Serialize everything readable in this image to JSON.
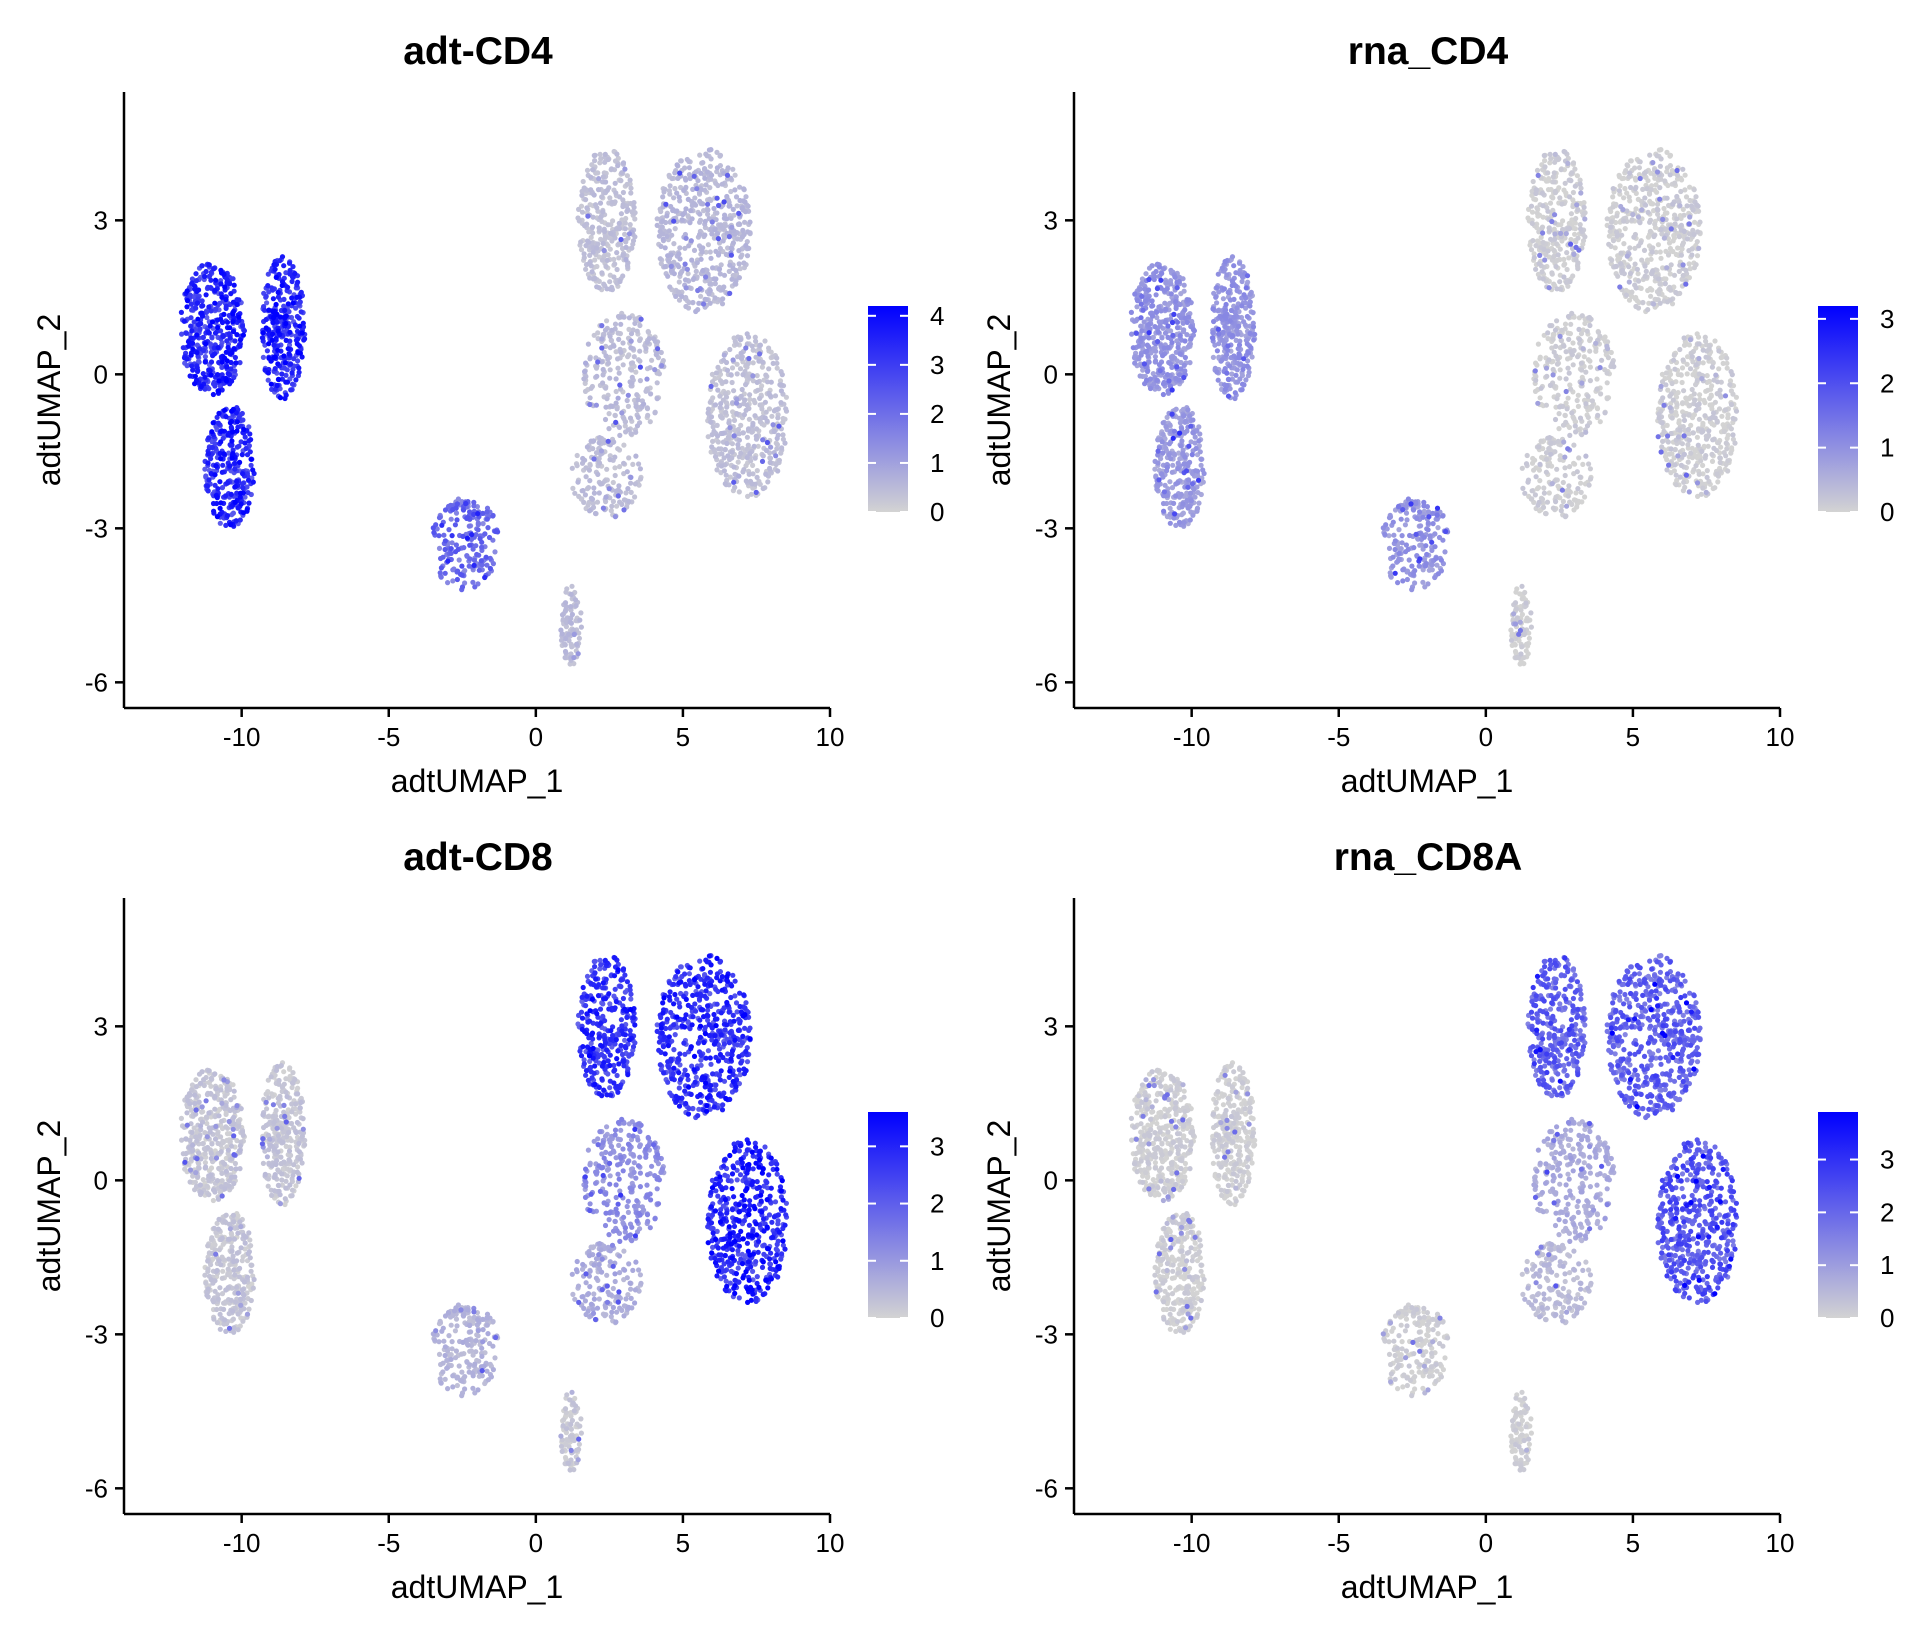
{
  "chart_data": [
    {
      "type": "scatter",
      "title": "adt-CD4",
      "xlabel": "adtUMAP_1",
      "ylabel": "adtUMAP_2",
      "xlim": [
        -14,
        10
      ],
      "ylim": [
        -6.5,
        5.5
      ],
      "xticks": [
        "-10",
        "-5",
        "0",
        "5",
        "10"
      ],
      "yticks": [
        "-6",
        "-3",
        "0",
        "3"
      ],
      "colorbar": {
        "min": 0,
        "max": 4.2,
        "ticks": [
          "0",
          "1",
          "2",
          "3",
          "4"
        ],
        "low_color": "#d3d3d3",
        "high_color": "#0000ff"
      },
      "clusters": [
        {
          "name": "A",
          "cx": -11,
          "cy": 0.9,
          "rx": 1.1,
          "ry": 1.3,
          "n": 420,
          "level": 3.2
        },
        {
          "name": "B",
          "cx": -8.6,
          "cy": 0.9,
          "rx": 0.75,
          "ry": 1.4,
          "n": 300,
          "level": 3.3
        },
        {
          "name": "C",
          "cx": -10.4,
          "cy": -1.8,
          "rx": 0.85,
          "ry": 1.2,
          "n": 300,
          "level": 3.2
        },
        {
          "name": "D",
          "cx": -2.4,
          "cy": -3.3,
          "rx": 1.2,
          "ry": 0.9,
          "n": 200,
          "level": 2.0
        },
        {
          "name": "E",
          "cx": 2.4,
          "cy": 3.0,
          "rx": 1.0,
          "ry": 1.4,
          "n": 320,
          "level": 0.35
        },
        {
          "name": "F",
          "cx": 5.7,
          "cy": 2.8,
          "rx": 1.6,
          "ry": 1.6,
          "n": 520,
          "level": 0.5
        },
        {
          "name": "G",
          "cx": 7.2,
          "cy": -0.8,
          "rx": 1.4,
          "ry": 1.6,
          "n": 460,
          "level": 0.35
        },
        {
          "name": "H",
          "cx": 3.0,
          "cy": 0.0,
          "rx": 1.4,
          "ry": 1.2,
          "n": 260,
          "level": 0.4
        },
        {
          "name": "I",
          "cx": 2.4,
          "cy": -2.0,
          "rx": 1.2,
          "ry": 0.8,
          "n": 160,
          "level": 0.4
        },
        {
          "name": "J",
          "cx": 1.2,
          "cy": -4.9,
          "rx": 0.35,
          "ry": 0.8,
          "n": 90,
          "level": 0.45
        }
      ]
    },
    {
      "type": "scatter",
      "title": "rna_CD4",
      "xlabel": "adtUMAP_1",
      "ylabel": "adtUMAP_2",
      "xlim": [
        -14,
        10
      ],
      "ylim": [
        -6.5,
        5.5
      ],
      "xticks": [
        "-10",
        "-5",
        "0",
        "5",
        "10"
      ],
      "yticks": [
        "-6",
        "-3",
        "0",
        "3"
      ],
      "colorbar": {
        "min": 0,
        "max": 3.2,
        "ticks": [
          "0",
          "1",
          "2",
          "3"
        ],
        "low_color": "#d3d3d3",
        "high_color": "#0000ff"
      },
      "clusters": [
        {
          "name": "A",
          "cx": -11,
          "cy": 0.9,
          "rx": 1.1,
          "ry": 1.3,
          "n": 420,
          "level": 0.9
        },
        {
          "name": "B",
          "cx": -8.6,
          "cy": 0.9,
          "rx": 0.75,
          "ry": 1.4,
          "n": 300,
          "level": 0.9
        },
        {
          "name": "C",
          "cx": -10.4,
          "cy": -1.8,
          "rx": 0.85,
          "ry": 1.2,
          "n": 300,
          "level": 0.8
        },
        {
          "name": "D",
          "cx": -2.4,
          "cy": -3.3,
          "rx": 1.2,
          "ry": 0.9,
          "n": 200,
          "level": 0.9
        },
        {
          "name": "E",
          "cx": 2.4,
          "cy": 3.0,
          "rx": 1.0,
          "ry": 1.4,
          "n": 320,
          "level": 0.02
        },
        {
          "name": "F",
          "cx": 5.7,
          "cy": 2.8,
          "rx": 1.6,
          "ry": 1.6,
          "n": 520,
          "level": 0.03
        },
        {
          "name": "G",
          "cx": 7.2,
          "cy": -0.8,
          "rx": 1.4,
          "ry": 1.6,
          "n": 460,
          "level": 0.03
        },
        {
          "name": "H",
          "cx": 3.0,
          "cy": 0.0,
          "rx": 1.4,
          "ry": 1.2,
          "n": 260,
          "level": 0.02
        },
        {
          "name": "I",
          "cx": 2.4,
          "cy": -2.0,
          "rx": 1.2,
          "ry": 0.8,
          "n": 160,
          "level": 0.02
        },
        {
          "name": "J",
          "cx": 1.2,
          "cy": -4.9,
          "rx": 0.35,
          "ry": 0.8,
          "n": 90,
          "level": 0.02
        }
      ]
    },
    {
      "type": "scatter",
      "title": "adt-CD8",
      "xlabel": "adtUMAP_1",
      "ylabel": "adtUMAP_2",
      "xlim": [
        -14,
        10
      ],
      "ylim": [
        -6.5,
        5.5
      ],
      "xticks": [
        "-10",
        "-5",
        "0",
        "5",
        "10"
      ],
      "yticks": [
        "-6",
        "-3",
        "0",
        "3"
      ],
      "colorbar": {
        "min": 0,
        "max": 3.6,
        "ticks": [
          "0",
          "1",
          "2",
          "3"
        ],
        "low_color": "#d3d3d3",
        "high_color": "#0000ff"
      },
      "clusters": [
        {
          "name": "A",
          "cx": -11,
          "cy": 0.9,
          "rx": 1.1,
          "ry": 1.3,
          "n": 420,
          "level": 0.2
        },
        {
          "name": "B",
          "cx": -8.6,
          "cy": 0.9,
          "rx": 0.75,
          "ry": 1.4,
          "n": 300,
          "level": 0.2
        },
        {
          "name": "C",
          "cx": -10.4,
          "cy": -1.8,
          "rx": 0.85,
          "ry": 1.2,
          "n": 300,
          "level": 0.2
        },
        {
          "name": "D",
          "cx": -2.4,
          "cy": -3.3,
          "rx": 1.2,
          "ry": 0.9,
          "n": 200,
          "level": 0.5
        },
        {
          "name": "E",
          "cx": 2.4,
          "cy": 3.0,
          "rx": 1.0,
          "ry": 1.4,
          "n": 320,
          "level": 2.6
        },
        {
          "name": "F",
          "cx": 5.7,
          "cy": 2.8,
          "rx": 1.6,
          "ry": 1.6,
          "n": 520,
          "level": 2.6
        },
        {
          "name": "G",
          "cx": 7.2,
          "cy": -0.8,
          "rx": 1.4,
          "ry": 1.6,
          "n": 460,
          "level": 2.8
        },
        {
          "name": "H",
          "cx": 3.0,
          "cy": 0.0,
          "rx": 1.4,
          "ry": 1.2,
          "n": 260,
          "level": 1.1
        },
        {
          "name": "I",
          "cx": 2.4,
          "cy": -2.0,
          "rx": 1.2,
          "ry": 0.8,
          "n": 160,
          "level": 0.6
        },
        {
          "name": "J",
          "cx": 1.2,
          "cy": -4.9,
          "rx": 0.35,
          "ry": 0.8,
          "n": 90,
          "level": 0.15
        }
      ]
    },
    {
      "type": "scatter",
      "title": "rna_CD8A",
      "xlabel": "adtUMAP_1",
      "ylabel": "adtUMAP_2",
      "xlim": [
        -14,
        10
      ],
      "ylim": [
        -6.5,
        5.5
      ],
      "xticks": [
        "-10",
        "-5",
        "0",
        "5",
        "10"
      ],
      "yticks": [
        "-6",
        "-3",
        "0",
        "3"
      ],
      "colorbar": {
        "min": 0,
        "max": 3.9,
        "ticks": [
          "0",
          "1",
          "2",
          "3"
        ],
        "low_color": "#d3d3d3",
        "high_color": "#0000ff"
      },
      "clusters": [
        {
          "name": "A",
          "cx": -11,
          "cy": 0.9,
          "rx": 1.1,
          "ry": 1.3,
          "n": 420,
          "level": 0.05
        },
        {
          "name": "B",
          "cx": -8.6,
          "cy": 0.9,
          "rx": 0.75,
          "ry": 1.4,
          "n": 300,
          "level": 0.05
        },
        {
          "name": "C",
          "cx": -10.4,
          "cy": -1.8,
          "rx": 0.85,
          "ry": 1.2,
          "n": 300,
          "level": 0.05
        },
        {
          "name": "D",
          "cx": -2.4,
          "cy": -3.3,
          "rx": 1.2,
          "ry": 0.9,
          "n": 200,
          "level": 0.05
        },
        {
          "name": "E",
          "cx": 2.4,
          "cy": 3.0,
          "rx": 1.0,
          "ry": 1.4,
          "n": 320,
          "level": 2.0
        },
        {
          "name": "F",
          "cx": 5.7,
          "cy": 2.8,
          "rx": 1.6,
          "ry": 1.6,
          "n": 520,
          "level": 2.0
        },
        {
          "name": "G",
          "cx": 7.2,
          "cy": -0.8,
          "rx": 1.4,
          "ry": 1.6,
          "n": 460,
          "level": 2.2
        },
        {
          "name": "H",
          "cx": 3.0,
          "cy": 0.0,
          "rx": 1.4,
          "ry": 1.2,
          "n": 260,
          "level": 0.7
        },
        {
          "name": "I",
          "cx": 2.4,
          "cy": -2.0,
          "rx": 1.2,
          "ry": 0.8,
          "n": 160,
          "level": 0.4
        },
        {
          "name": "J",
          "cx": 1.2,
          "cy": -4.9,
          "rx": 0.35,
          "ry": 0.8,
          "n": 90,
          "level": 0.05
        }
      ]
    }
  ]
}
